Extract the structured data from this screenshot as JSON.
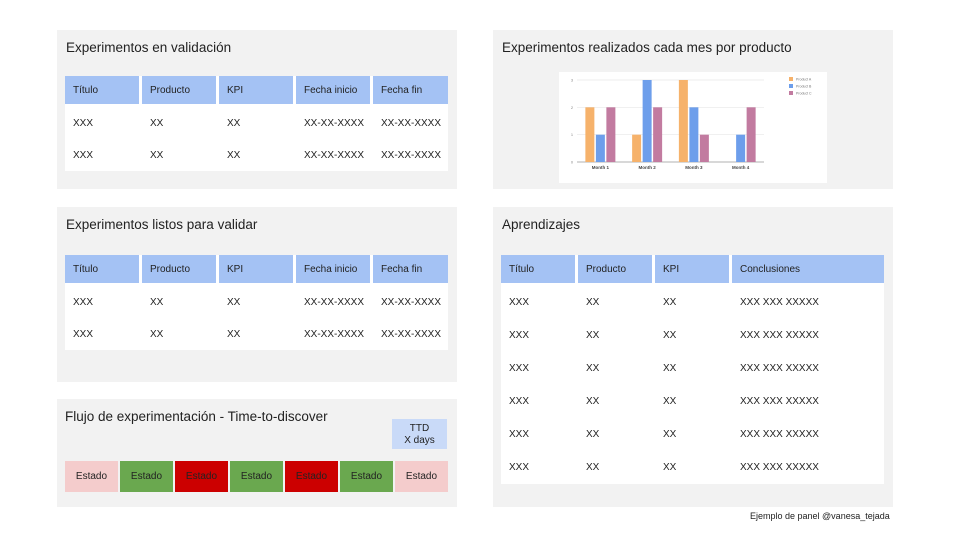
{
  "validation_panel": {
    "title": "Experimentos en validación",
    "headers": [
      "Título",
      "Producto",
      "KPI",
      "Fecha inicio",
      "Fecha fin"
    ],
    "rows": [
      [
        "XXX",
        "XX",
        "XX",
        "XX-XX-XXXX",
        "XX-XX-XXXX"
      ],
      [
        "XXX",
        "XX",
        "XX",
        "XX-XX-XXXX",
        "XX-XX-XXXX"
      ]
    ]
  },
  "ready_panel": {
    "title": "Experimentos listos para validar",
    "headers": [
      "Título",
      "Producto",
      "KPI",
      "Fecha inicio",
      "Fecha fin"
    ],
    "rows": [
      [
        "XXX",
        "XX",
        "XX",
        "XX-XX-XXXX",
        "XX-XX-XXXX"
      ],
      [
        "XXX",
        "XX",
        "XX",
        "XX-XX-XXXX",
        "XX-XX-XXXX"
      ]
    ]
  },
  "flow_panel": {
    "title": "Flujo de experimentación - Time-to-discover",
    "ttd_label": "TTD",
    "ttd_value": "X days",
    "steps": [
      {
        "label": "Estado",
        "status": "pending"
      },
      {
        "label": "Estado",
        "status": "ok"
      },
      {
        "label": "Estado",
        "status": "ko"
      },
      {
        "label": "Estado",
        "status": "ok"
      },
      {
        "label": "Estado",
        "status": "ko"
      },
      {
        "label": "Estado",
        "status": "ok"
      },
      {
        "label": "Estado",
        "status": "pending"
      }
    ],
    "colors": {
      "pending": "#f4cccc",
      "ok": "#6aa84f",
      "ko": "#cc0000"
    }
  },
  "chart_panel": {
    "title": "Experimentos realizados cada mes por producto"
  },
  "chart_data": {
    "type": "bar",
    "categories": [
      "Month 1",
      "Month 2",
      "Month 3",
      "Month 4"
    ],
    "series": [
      {
        "name": "Product A",
        "values": [
          2,
          1,
          3,
          0
        ],
        "color": "#f6b26b"
      },
      {
        "name": "Product B",
        "values": [
          1,
          3,
          2,
          1
        ],
        "color": "#6d9eeb"
      },
      {
        "name": "Product C",
        "values": [
          2,
          2,
          1,
          2
        ],
        "color": "#c27ba0"
      }
    ],
    "ylim": [
      0,
      3
    ],
    "yticks": [
      "0",
      "1",
      "2",
      "3"
    ],
    "legend": "top-right",
    "grid": true
  },
  "learnings_panel": {
    "title": "Aprendizajes",
    "headers": [
      "Título",
      "Producto",
      "KPI",
      "Conclusiones"
    ],
    "rows": [
      [
        "XXX",
        "XX",
        "XX",
        "XXX XXX XXXXX"
      ],
      [
        "XXX",
        "XX",
        "XX",
        "XXX XXX XXXXX"
      ],
      [
        "XXX",
        "XX",
        "XX",
        "XXX XXX XXXXX"
      ],
      [
        "XXX",
        "XX",
        "XX",
        "XXX XXX XXXXX"
      ],
      [
        "XXX",
        "XX",
        "XX",
        "XXX XXX XXXXX"
      ],
      [
        "XXX",
        "XX",
        "XX",
        "XXX XXX XXXXX"
      ]
    ]
  },
  "footer": "Ejemplo de panel @vanesa_tejada"
}
